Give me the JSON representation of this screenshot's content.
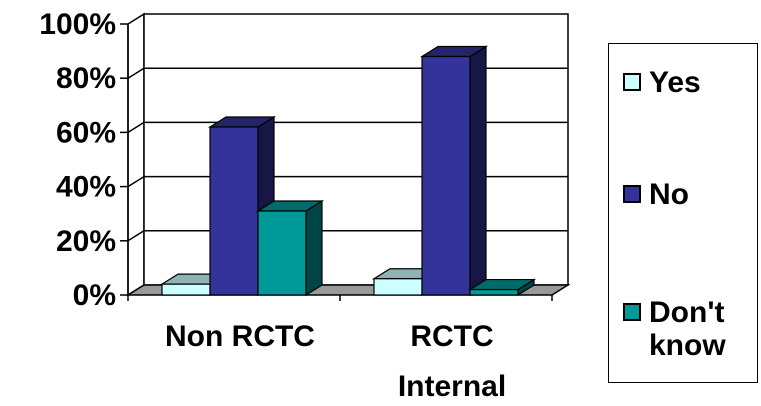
{
  "chart_data": {
    "type": "bar",
    "title": "",
    "xlabel": "",
    "ylabel": "",
    "ylim": [
      0,
      100
    ],
    "yticks": [
      "0%",
      "20%",
      "40%",
      "60%",
      "80%",
      "100%"
    ],
    "categories": [
      {
        "lines": [
          "Non RCTC"
        ]
      },
      {
        "lines": [
          "RCTC",
          "Internal"
        ]
      }
    ],
    "series": [
      {
        "name": "Yes",
        "values": [
          4,
          6
        ],
        "color": "#CCFFFF"
      },
      {
        "name": "No",
        "values": [
          62,
          88
        ],
        "color": "#333399"
      },
      {
        "name": "Don't know",
        "label_lines": [
          "Don't",
          "know"
        ],
        "values": [
          31,
          2
        ],
        "color": "#009999"
      }
    ],
    "grid": true,
    "legend": "right",
    "three_d": true
  }
}
